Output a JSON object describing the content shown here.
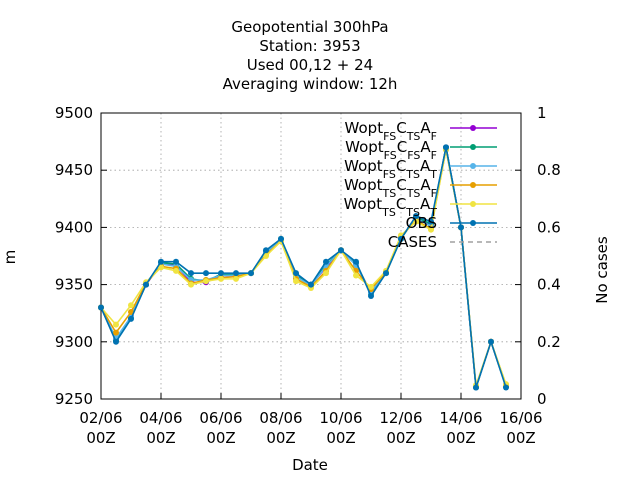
{
  "chart_data": {
    "type": "line",
    "title": [
      "Geopotential 300hPa",
      "Station:      3953",
      "Used  00,12  + 24",
      "Averaging window: 12h"
    ],
    "x_label": "Date",
    "y_label": "m",
    "y2_label": "No cases",
    "x": [
      "02/06 00Z",
      "02/06 12Z",
      "03/06 00Z",
      "03/06 12Z",
      "04/06 00Z",
      "04/06 12Z",
      "05/06 00Z",
      "05/06 12Z",
      "06/06 00Z",
      "06/06 12Z",
      "07/06 00Z",
      "07/06 12Z",
      "08/06 00Z",
      "08/06 12Z",
      "09/06 00Z",
      "09/06 12Z",
      "10/06 00Z",
      "10/06 12Z",
      "11/06 00Z",
      "11/06 12Z",
      "12/06 00Z",
      "12/06 12Z",
      "13/06 00Z",
      "13/06 12Z",
      "14/06 00Z",
      "14/06 12Z",
      "15/06 00Z",
      "15/06 12Z"
    ],
    "xlim": [
      "02/06 00Z",
      "16/06 00Z"
    ],
    "xticks": [
      "02/06 00Z",
      "04/06 00Z",
      "06/06 00Z",
      "08/06 00Z",
      "10/06 00Z",
      "12/06 00Z",
      "14/06 00Z",
      "16/06 00Z"
    ],
    "ylim": [
      9250,
      9500
    ],
    "yticks": [
      9250,
      9300,
      9350,
      9400,
      9450,
      9500
    ],
    "y2lim": [
      0,
      1
    ],
    "y2ticks": [
      0,
      0.2,
      0.4,
      0.6,
      0.8,
      1
    ],
    "grid": true,
    "legend": "top-right",
    "series": [
      {
        "name": "Wopt_{FS}C_{TS}A_{F}",
        "color": "#9400d3",
        "values": [
          9330,
          9302,
          9322,
          9350,
          9368,
          9367,
          9352,
          9352,
          9358,
          9358,
          9360,
          9378,
          9389,
          9358,
          9350,
          9365,
          9380,
          9368,
          9343,
          9360,
          9391,
          9408,
          9402,
          9470,
          9400,
          9260,
          9300,
          9261
        ]
      },
      {
        "name": "Wopt_{FS}C_{FS}A_{F}",
        "color": "#009e73",
        "values": [
          9330,
          9301,
          9321,
          9350,
          9369,
          9368,
          9355,
          9353,
          9359,
          9359,
          9360,
          9379,
          9390,
          9359,
          9350,
          9367,
          9380,
          9369,
          9342,
          9360,
          9390,
          9409,
          9403,
          9470,
          9400,
          9260,
          9300,
          9261
        ]
      },
      {
        "name": "Wopt_{FS}C_{TS}A_{T}",
        "color": "#56b4e9",
        "values": [
          9330,
          9303,
          9322,
          9351,
          9368,
          9366,
          9354,
          9354,
          9358,
          9358,
          9360,
          9378,
          9389,
          9357,
          9349,
          9366,
          9380,
          9367,
          9343,
          9361,
          9391,
          9408,
          9401,
          9469,
          9400,
          9260,
          9300,
          9262
        ]
      },
      {
        "name": "Wopt_{TS}C_{TS}A_{F}",
        "color": "#e69f00",
        "values": [
          9330,
          9308,
          9326,
          9351,
          9366,
          9364,
          9351,
          9354,
          9356,
          9357,
          9360,
          9376,
          9388,
          9355,
          9348,
          9362,
          9380,
          9362,
          9346,
          9361,
          9392,
          9406,
          9399,
          9468,
          9400,
          9261,
          9300,
          9262
        ]
      },
      {
        "name": "Wopt_{TS}C_{TS}A_{T}",
        "color": "#f0e442",
        "values": [
          9330,
          9315,
          9332,
          9352,
          9365,
          9362,
          9350,
          9353,
          9355,
          9355,
          9360,
          9375,
          9388,
          9353,
          9347,
          9360,
          9380,
          9358,
          9348,
          9362,
          9393,
          9405,
          9398,
          9468,
          9400,
          9262,
          9300,
          9263
        ]
      },
      {
        "name": "OBS",
        "color": "#0072b2",
        "values": [
          9330,
          9300,
          9320,
          9350,
          9370,
          9370,
          9360,
          9360,
          9360,
          9360,
          9360,
          9380,
          9390,
          9360,
          9350,
          9370,
          9380,
          9370,
          9340,
          9360,
          9390,
          9410,
          9405,
          9470,
          9400,
          9260,
          9300,
          9260
        ]
      },
      {
        "name": "CASES",
        "color": "#a0a0a0",
        "dash": true,
        "axis": "y2",
        "values": [
          null,
          null,
          null,
          null,
          null,
          null,
          null,
          null,
          null,
          null,
          null,
          null,
          null,
          null,
          null,
          null,
          null,
          null,
          null,
          null,
          null,
          null,
          null,
          null,
          null,
          null,
          null,
          null
        ]
      }
    ]
  }
}
